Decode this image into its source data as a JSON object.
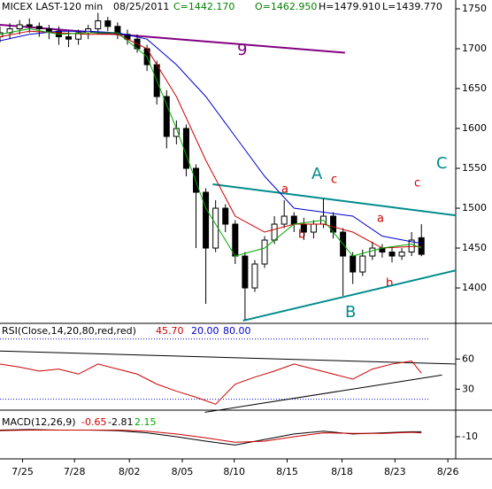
{
  "chart_data": [
    {
      "type": "candlestick",
      "title": "MICEX LAST-120 min",
      "date": "08/25/2011",
      "stats": [
        "C=1442.170",
        "O=1462.950",
        "H=1479.910",
        "L=1439.770"
      ],
      "x": [
        0,
        1,
        2,
        3,
        4,
        5,
        6,
        7,
        8,
        9,
        10,
        11,
        12,
        13,
        14,
        15,
        16,
        17,
        18,
        19,
        20,
        21,
        22,
        23,
        24,
        25,
        26,
        27,
        28,
        29,
        30,
        31,
        32,
        33,
        34,
        35,
        36,
        37,
        38,
        39,
        40,
        41,
        42,
        43
      ],
      "open": [
        1715,
        1720,
        1725,
        1730,
        1728,
        1725,
        1722,
        1715,
        1712,
        1720,
        1725,
        1735,
        1728,
        1718,
        1712,
        1700,
        1680,
        1640,
        1590,
        1600,
        1550,
        1520,
        1450,
        1500,
        1480,
        1440,
        1400,
        1430,
        1460,
        1480,
        1490,
        1480,
        1470,
        1480,
        1490,
        1470,
        1440,
        1420,
        1440,
        1450,
        1445,
        1440,
        1445,
        1462.95
      ],
      "high": [
        1728,
        1732,
        1736,
        1738,
        1733,
        1730,
        1728,
        1722,
        1724,
        1730,
        1745,
        1740,
        1733,
        1724,
        1718,
        1705,
        1685,
        1648,
        1610,
        1605,
        1555,
        1525,
        1510,
        1505,
        1485,
        1445,
        1435,
        1465,
        1490,
        1510,
        1495,
        1488,
        1485,
        1512,
        1495,
        1475,
        1445,
        1448,
        1458,
        1455,
        1452,
        1450,
        1470,
        1479.91
      ],
      "low": [
        1708,
        1712,
        1718,
        1720,
        1715,
        1712,
        1705,
        1702,
        1705,
        1712,
        1718,
        1722,
        1712,
        1705,
        1695,
        1672,
        1630,
        1575,
        1580,
        1540,
        1450,
        1380,
        1445,
        1470,
        1430,
        1360,
        1395,
        1425,
        1455,
        1475,
        1470,
        1460,
        1462,
        1475,
        1462,
        1390,
        1405,
        1415,
        1435,
        1438,
        1432,
        1435,
        1440,
        1439.77
      ],
      "close": [
        1720,
        1725,
        1730,
        1728,
        1725,
        1722,
        1715,
        1712,
        1720,
        1725,
        1735,
        1728,
        1718,
        1712,
        1700,
        1680,
        1640,
        1590,
        1600,
        1550,
        1520,
        1450,
        1500,
        1480,
        1440,
        1400,
        1430,
        1460,
        1480,
        1490,
        1480,
        1470,
        1480,
        1490,
        1470,
        1440,
        1420,
        1440,
        1450,
        1445,
        1440,
        1445,
        1460,
        1442.17
      ],
      "xlim": [
        0,
        46.5
      ],
      "xticks": [
        {
          "value": 2.3,
          "label": "7/25"
        },
        {
          "value": 7.6,
          "label": "7/28"
        },
        {
          "value": 13.2,
          "label": "8/02"
        },
        {
          "value": 18.6,
          "label": "8/05"
        },
        {
          "value": 23.9,
          "label": "8/10"
        },
        {
          "value": 29.3,
          "label": "8/15"
        },
        {
          "value": 34.9,
          "label": "8/18"
        },
        {
          "value": 40.3,
          "label": "8/23"
        },
        {
          "value": 45.7,
          "label": "8/26"
        }
      ],
      "ylim": [
        1355.6,
        1761.1
      ],
      "yticks": [
        1400,
        1450,
        1500,
        1550,
        1600,
        1650,
        1700,
        1750
      ],
      "series": [
        {
          "color": "#0000cc",
          "x": [
            0,
            3,
            6,
            9,
            12,
            15,
            18,
            21,
            24,
            27,
            30,
            33,
            36,
            39,
            42,
            43
          ],
          "values": [
            1710,
            1718,
            1722,
            1722,
            1720,
            1712,
            1680,
            1640,
            1590,
            1540,
            1500,
            1495,
            1490,
            1465,
            1458,
            1456
          ]
        },
        {
          "color": "#cc0000",
          "x": [
            0,
            3,
            6,
            9,
            12,
            15,
            18,
            21,
            24,
            27,
            30,
            33,
            36,
            39,
            42,
            43
          ],
          "values": [
            1715,
            1722,
            1720,
            1718,
            1718,
            1700,
            1640,
            1560,
            1490,
            1470,
            1480,
            1480,
            1470,
            1450,
            1452,
            1452
          ]
        },
        {
          "color": "#00aa00",
          "x": [
            0,
            3,
            6,
            9,
            12,
            15,
            18,
            21,
            24,
            27,
            30,
            33,
            36,
            39,
            42,
            43
          ],
          "values": [
            1718,
            1725,
            1718,
            1720,
            1720,
            1690,
            1600,
            1500,
            1440,
            1450,
            1480,
            1485,
            1440,
            1450,
            1455,
            1450
          ]
        }
      ],
      "trendlines": [
        {
          "color": "#800080",
          "x": [
            0,
            35.2
          ],
          "y": [
            1730,
            1695
          ]
        },
        {
          "color": "#008b8b",
          "x": [
            21.7,
            46.5
          ],
          "y": [
            1530,
            1491
          ]
        },
        {
          "color": "#008b8b",
          "x": [
            24.8,
            46.5
          ],
          "y": [
            1359,
            1422
          ]
        }
      ],
      "annotations": [
        "9",
        "A",
        "c",
        "a",
        "b",
        "a",
        "b",
        "c",
        "B",
        "C"
      ]
    },
    {
      "type": "rsi",
      "title": "RSI(Close,14,20,80,red,red)",
      "last": 45.7,
      "last_label": "45.70",
      "lower": {
        "value": 20,
        "label": "20.00"
      },
      "upper": {
        "value": 80,
        "label": "80.00"
      },
      "color": "#cc0000",
      "x": [
        0,
        2,
        4,
        6,
        8,
        10,
        12,
        14,
        16,
        18,
        20,
        22,
        24,
        26,
        28,
        30,
        32,
        34,
        36,
        38,
        40,
        42,
        43
      ],
      "values": [
        55,
        52,
        48,
        50,
        45,
        55,
        50,
        45,
        35,
        28,
        22,
        15,
        35,
        42,
        48,
        55,
        50,
        45,
        40,
        50,
        55,
        58,
        46
      ],
      "ylim": [
        9.1,
        95.5
      ],
      "yticks": [
        30,
        60
      ],
      "trendlines": [
        {
          "x": [
            0,
            46.5
          ],
          "y": [
            68,
            55
          ]
        },
        {
          "x": [
            20.9,
            45.1
          ],
          "y": [
            7,
            44
          ]
        }
      ]
    },
    {
      "type": "macd",
      "title": "MACD(12,26,9)",
      "readings": [
        {
          "value": -0.65,
          "label": "-0.65",
          "color": "#cc0000"
        },
        {
          "value": -2.81,
          "label": "-2.81",
          "color": "#000000"
        },
        {
          "value": 2.15,
          "label": "2.15",
          "color": "#00aa00"
        }
      ],
      "x": [
        0,
        3,
        6,
        9,
        12,
        15,
        18,
        21,
        24,
        27,
        30,
        33,
        36,
        39,
        42,
        43
      ],
      "series": [
        {
          "color": "#000000",
          "values": [
            2,
            3,
            2,
            2,
            1,
            -3,
            -10,
            -18,
            -25,
            -15,
            -5,
            0,
            -5,
            -3,
            -1,
            -1
          ]
        },
        {
          "color": "#cc0000",
          "values": [
            1,
            2,
            2,
            2,
            2,
            0,
            -5,
            -12,
            -20,
            -18,
            -10,
            -3,
            -4,
            -4,
            -2,
            -3
          ]
        }
      ],
      "ylim": [
        -50,
        38
      ],
      "yticks": [
        -10
      ]
    }
  ]
}
